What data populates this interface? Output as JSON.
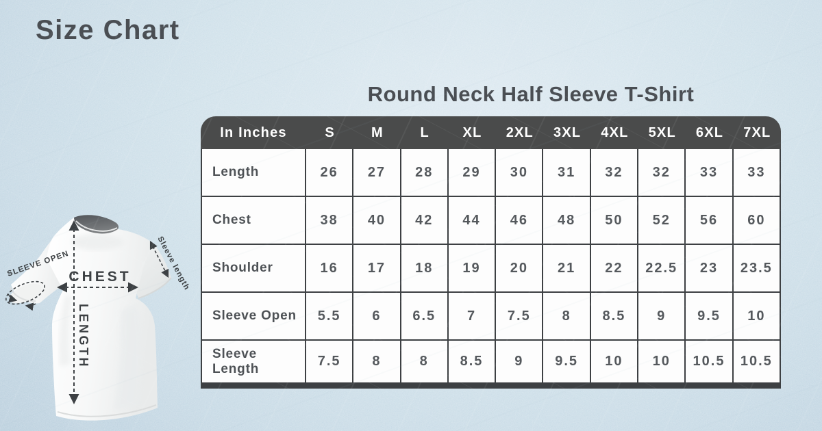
{
  "page": {
    "title": "Size Chart"
  },
  "diagram_labels": {
    "chest": "CHEST",
    "length": "LENGTH",
    "sleeve_open": "SLEEVE OPEN",
    "sleeve_length": "Sleeve length"
  },
  "chart_data": {
    "type": "table",
    "title": "Round Neck Half Sleeve T-Shirt",
    "unit_header": "In Inches",
    "columns": [
      "S",
      "M",
      "L",
      "XL",
      "2XL",
      "3XL",
      "4XL",
      "5XL",
      "6XL",
      "7XL"
    ],
    "rows": [
      {
        "label": "Length",
        "values": [
          "26",
          "27",
          "28",
          "29",
          "30",
          "31",
          "32",
          "32",
          "33",
          "33"
        ]
      },
      {
        "label": "Chest",
        "values": [
          "38",
          "40",
          "42",
          "44",
          "46",
          "48",
          "50",
          "52",
          "56",
          "60"
        ]
      },
      {
        "label": "Shoulder",
        "values": [
          "16",
          "17",
          "18",
          "19",
          "20",
          "21",
          "22",
          "22.5",
          "23",
          "23.5"
        ]
      },
      {
        "label": "Sleeve Open",
        "values": [
          "5.5",
          "6",
          "6.5",
          "7",
          "7.5",
          "8",
          "8.5",
          "9",
          "9.5",
          "10"
        ]
      },
      {
        "label": "Sleeve Length",
        "values": [
          "7.5",
          "8",
          "8",
          "8.5",
          "9",
          "9.5",
          "10",
          "10",
          "10.5",
          "10.5"
        ]
      }
    ]
  },
  "colors": {
    "background": "#cfe1ea",
    "header_bg": "#4a4b4b",
    "header_text": "#ffffff",
    "cell_bg": "#fdfdfd",
    "cell_text": "#54585c",
    "border": "#3d4043",
    "title_text": "#4a4e53"
  }
}
